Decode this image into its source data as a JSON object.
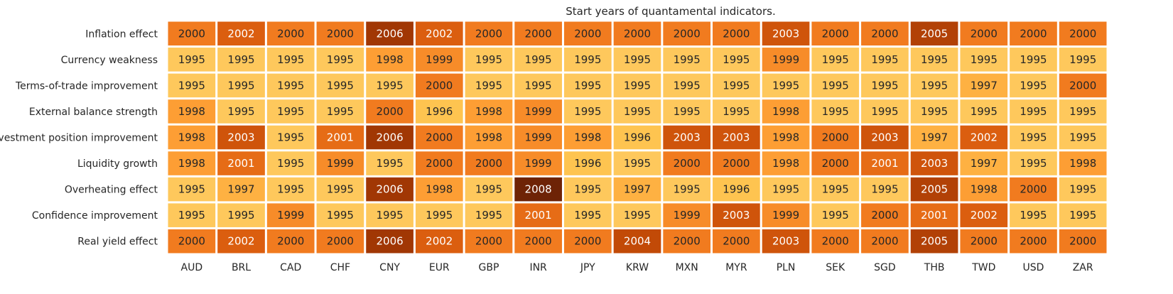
{
  "chart_data": {
    "type": "heatmap",
    "title": "Start years of quantamental indicators.",
    "xlabel": "",
    "ylabel": "",
    "colormap": "YlOrBr",
    "color_range": [
      1995,
      2008
    ],
    "grid": false,
    "legend": "none",
    "columns": [
      "AUD",
      "BRL",
      "CAD",
      "CHF",
      "CNY",
      "EUR",
      "GBP",
      "INR",
      "JPY",
      "KRW",
      "MXN",
      "MYR",
      "PLN",
      "SEK",
      "SGD",
      "THB",
      "TWD",
      "USD",
      "ZAR"
    ],
    "rows": [
      "Inflation effect",
      "Currency weakness",
      "Terms-of-trade improvement",
      "External balance strength",
      "Investment position improvement",
      "Liquidity growth",
      "Overheating effect",
      "Confidence improvement",
      "Real yield effect"
    ],
    "values": [
      [
        2000,
        2002,
        2000,
        2000,
        2006,
        2002,
        2000,
        2000,
        2000,
        2000,
        2000,
        2000,
        2003,
        2000,
        2000,
        2005,
        2000,
        2000,
        2000
      ],
      [
        1995,
        1995,
        1995,
        1995,
        1998,
        1999,
        1995,
        1995,
        1995,
        1995,
        1995,
        1995,
        1999,
        1995,
        1995,
        1995,
        1995,
        1995,
        1995
      ],
      [
        1995,
        1995,
        1995,
        1995,
        1995,
        2000,
        1995,
        1995,
        1995,
        1995,
        1995,
        1995,
        1995,
        1995,
        1995,
        1995,
        1997,
        1995,
        2000
      ],
      [
        1998,
        1995,
        1995,
        1995,
        2000,
        1996,
        1998,
        1999,
        1995,
        1995,
        1995,
        1995,
        1998,
        1995,
        1995,
        1995,
        1995,
        1995,
        1995
      ],
      [
        1998,
        2003,
        1995,
        2001,
        2006,
        2000,
        1998,
        1999,
        1998,
        1996,
        2003,
        2003,
        1998,
        2000,
        2003,
        1997,
        2002,
        1995,
        1995
      ],
      [
        1998,
        2001,
        1995,
        1999,
        1995,
        2000,
        2000,
        1999,
        1996,
        1995,
        2000,
        2000,
        1998,
        2000,
        2001,
        2003,
        1997,
        1995,
        1998
      ],
      [
        1995,
        1997,
        1995,
        1995,
        2006,
        1998,
        1995,
        2008,
        1995,
        1997,
        1995,
        1996,
        1995,
        1995,
        1995,
        2005,
        1998,
        2000,
        1995
      ],
      [
        1995,
        1995,
        1999,
        1995,
        1995,
        1995,
        1995,
        2001,
        1995,
        1995,
        1999,
        2003,
        1999,
        1995,
        2000,
        2001,
        2002,
        1995,
        1995
      ],
      [
        2000,
        2002,
        2000,
        2000,
        2006,
        2002,
        2000,
        2000,
        2000,
        2004,
        2000,
        2000,
        2003,
        2000,
        2000,
        2005,
        2000,
        2000,
        2000
      ]
    ]
  }
}
